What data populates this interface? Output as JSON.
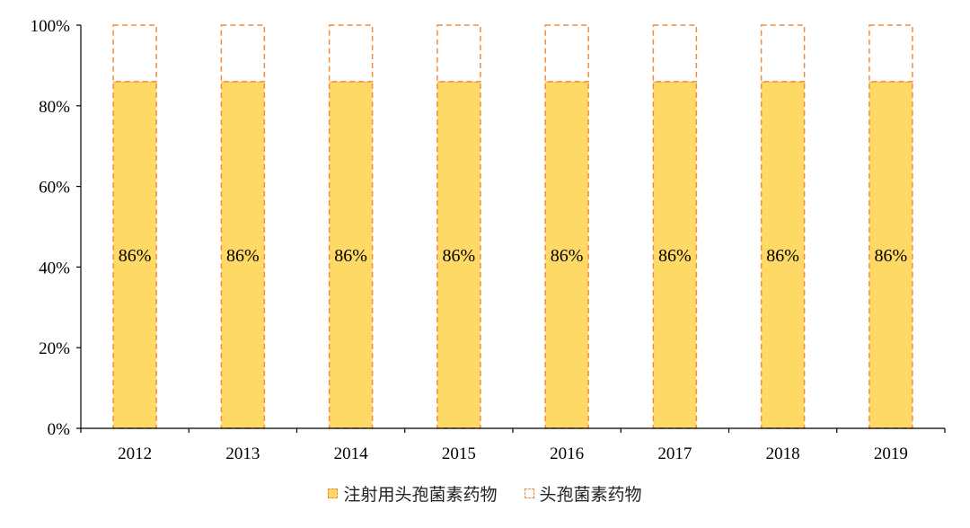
{
  "chart_data": {
    "type": "bar",
    "stacked": true,
    "categories": [
      "2012",
      "2013",
      "2014",
      "2015",
      "2016",
      "2017",
      "2018",
      "2019"
    ],
    "series": [
      {
        "name": "注射用头孢菌素药物",
        "values": [
          86,
          86,
          86,
          86,
          86,
          86,
          86,
          86
        ],
        "labels": [
          "86%",
          "86%",
          "86%",
          "86%",
          "86%",
          "86%",
          "86%",
          "86%"
        ],
        "color": "#FFD966",
        "border": "#F08C3C"
      },
      {
        "name": "头孢菌素药物",
        "values": [
          14,
          14,
          14,
          14,
          14,
          14,
          14,
          14
        ],
        "color": "#FFFFFF",
        "border": "#F08C3C"
      }
    ],
    "yticks": [
      "0%",
      "20%",
      "40%",
      "60%",
      "80%",
      "100%"
    ],
    "ylim": [
      0,
      100
    ],
    "xlabel": "",
    "ylabel": "",
    "grid": false,
    "legend_position": "bottom"
  }
}
